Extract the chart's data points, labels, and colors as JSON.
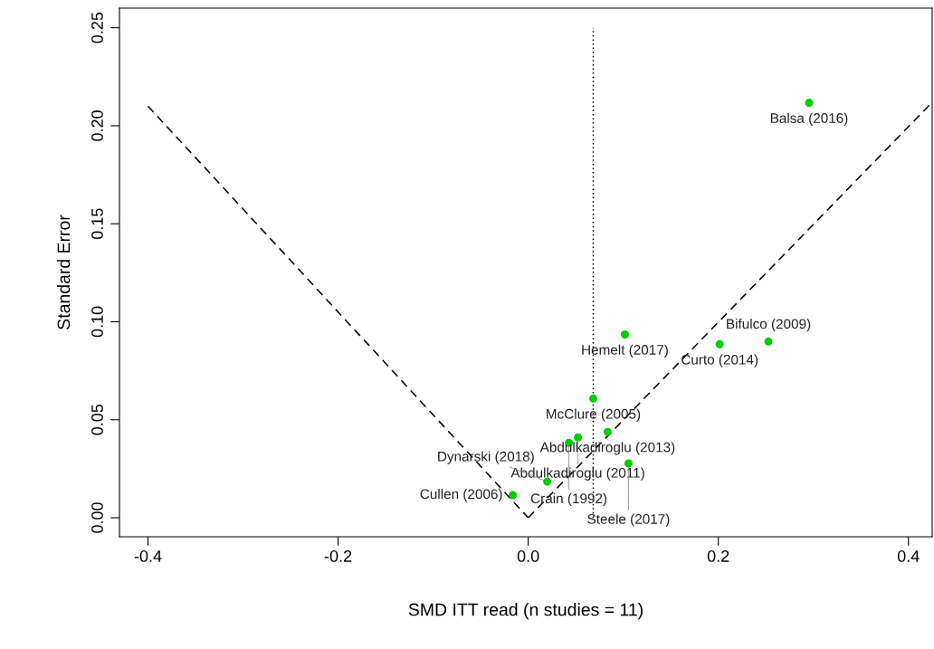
{
  "chart_data": {
    "type": "scatter",
    "xlabel": "SMD ITT read (n studies = 11)",
    "ylabel": "Standard Error",
    "xlim": [
      -0.43,
      0.425
    ],
    "ylim": [
      -0.0097,
      0.26
    ],
    "xticks": [
      -0.4,
      -0.2,
      {
        "value": 0,
        "label": "0.0"
      },
      0.2,
      0.4
    ],
    "yticks": [
      {
        "value": 0,
        "label": "0.00"
      },
      0.05,
      {
        "value": 0.1,
        "label": "0.10"
      },
      0.15,
      {
        "value": 0.2,
        "label": "0.20"
      },
      0.25
    ],
    "grid": false,
    "legend": false,
    "marker": "circle",
    "series": [
      {
        "color": "#00cc00",
        "x": [
          0.2955,
          0.1017,
          0.2014,
          0.2527,
          0.0684,
          0.0836,
          0.0523,
          0.0428,
          0.1055,
          0.02,
          -0.0162
        ],
        "values": [
          0.2117,
          0.0935,
          0.0885,
          0.0899,
          0.0608,
          0.0438,
          0.041,
          0.0382,
          0.0277,
          0.0184,
          0.0115
        ]
      },
      {
        "type": "line",
        "color": "#000000",
        "line_style": "dashed",
        "marker": "none",
        "x": [
          -0.4,
          0.0
        ],
        "values": [
          0.21,
          0.0
        ]
      },
      {
        "type": "line",
        "color": "#000000",
        "line_style": "dashed",
        "marker": "none",
        "x": [
          0.0,
          0.424
        ],
        "values": [
          0.0,
          0.2115
        ]
      },
      {
        "type": "line",
        "color": "#000000",
        "line_style": "dotted",
        "marker": "none",
        "x": [
          0.0684,
          0.0684
        ],
        "values": [
          0.0,
          0.25
        ]
      }
    ],
    "annotations": [
      {
        "text": "Balsa (2016)",
        "x": 0.2955,
        "y": 0.2117
      },
      {
        "text": "Hemelt (2017)",
        "x": 0.1017,
        "y": 0.0935
      },
      {
        "text": "Curto (2014)",
        "x": 0.2014,
        "y": 0.0885
      },
      {
        "text": "Bifulco (2009)",
        "x": 0.2527,
        "y": 0.0899
      },
      {
        "text": "McClure (2005)",
        "x": 0.0684,
        "y": 0.0608
      },
      {
        "text": "Abdulkadiroglu (2013)",
        "x": 0.0836,
        "y": 0.0438
      },
      {
        "text": "Abdulkadiroglu (2011)",
        "x": 0.0523,
        "y": 0.041
      },
      {
        "text": "Crain (1992)",
        "x": 0.0428,
        "y": 0.0382
      },
      {
        "text": "Steele (2017)",
        "x": 0.1055,
        "y": 0.0277
      },
      {
        "text": "Dynarski (2018)",
        "x": 0.02,
        "y": 0.0184
      },
      {
        "text": "Cullen (2006)",
        "x": -0.0162,
        "y": 0.0115
      }
    ]
  }
}
